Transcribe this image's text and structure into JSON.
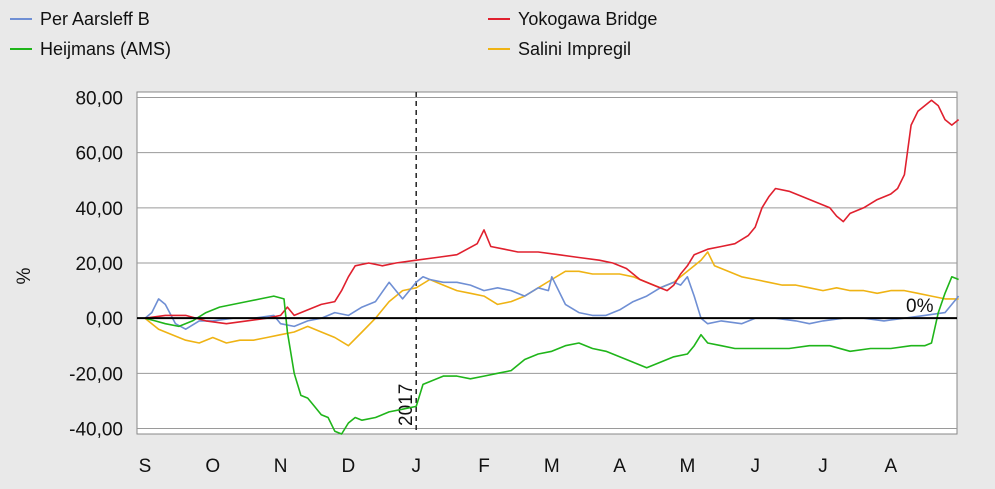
{
  "chart_data": {
    "type": "line",
    "ylabel": "%",
    "ylim": [
      -42,
      82
    ],
    "yticks": [
      80,
      60,
      40,
      20,
      0,
      -20,
      -40
    ],
    "ytick_labels": [
      "80,00",
      "60,00",
      "40,00",
      "20,00",
      "0,00",
      "-20,00",
      "-40,00"
    ],
    "x_months": [
      "S",
      "O",
      "N",
      "D",
      "J",
      "F",
      "M",
      "A",
      "M",
      "J",
      "J",
      "A"
    ],
    "year_marker": {
      "label": "2017",
      "x": 4.0
    },
    "zero_label": "0%",
    "grid": true,
    "legend_position": "top",
    "series": [
      {
        "name": "Per Aarsleff B",
        "color": "#6f8fd4",
        "points": [
          [
            0,
            0
          ],
          [
            0.1,
            2
          ],
          [
            0.2,
            7
          ],
          [
            0.3,
            5
          ],
          [
            0.45,
            -2
          ],
          [
            0.6,
            -4
          ],
          [
            0.8,
            -1
          ],
          [
            1.0,
            -1
          ],
          [
            1.3,
            0
          ],
          [
            1.6,
            0
          ],
          [
            1.9,
            1
          ],
          [
            2.0,
            -2
          ],
          [
            2.2,
            -3
          ],
          [
            2.4,
            -1
          ],
          [
            2.6,
            0
          ],
          [
            2.8,
            2
          ],
          [
            3.0,
            1
          ],
          [
            3.2,
            4
          ],
          [
            3.4,
            6
          ],
          [
            3.6,
            13
          ],
          [
            3.7,
            10
          ],
          [
            3.8,
            7
          ],
          [
            4.0,
            13
          ],
          [
            4.1,
            15
          ],
          [
            4.2,
            14
          ],
          [
            4.4,
            13
          ],
          [
            4.6,
            13
          ],
          [
            4.8,
            12
          ],
          [
            5.0,
            10
          ],
          [
            5.2,
            11
          ],
          [
            5.4,
            10
          ],
          [
            5.6,
            8
          ],
          [
            5.8,
            11
          ],
          [
            5.95,
            10
          ],
          [
            6.0,
            15
          ],
          [
            6.2,
            5
          ],
          [
            6.4,
            2
          ],
          [
            6.6,
            1
          ],
          [
            6.8,
            1
          ],
          [
            7.0,
            3
          ],
          [
            7.2,
            6
          ],
          [
            7.4,
            8
          ],
          [
            7.6,
            11
          ],
          [
            7.8,
            13
          ],
          [
            7.9,
            12
          ],
          [
            8.0,
            15
          ],
          [
            8.1,
            8
          ],
          [
            8.2,
            0
          ],
          [
            8.3,
            -2
          ],
          [
            8.5,
            -1
          ],
          [
            8.8,
            -2
          ],
          [
            9.0,
            0
          ],
          [
            9.3,
            0
          ],
          [
            9.6,
            -1
          ],
          [
            9.8,
            -2
          ],
          [
            10.0,
            -1
          ],
          [
            10.3,
            0
          ],
          [
            10.6,
            0
          ],
          [
            10.9,
            -1
          ],
          [
            11.2,
            0
          ],
          [
            11.5,
            1
          ],
          [
            11.8,
            2
          ],
          [
            12.0,
            8
          ]
        ]
      },
      {
        "name": "Heijmans (AMS)",
        "color": "#1fb51a",
        "points": [
          [
            0,
            0
          ],
          [
            0.15,
            -1
          ],
          [
            0.3,
            -2
          ],
          [
            0.5,
            -3
          ],
          [
            0.7,
            -1
          ],
          [
            0.9,
            2
          ],
          [
            1.1,
            4
          ],
          [
            1.3,
            5
          ],
          [
            1.5,
            6
          ],
          [
            1.7,
            7
          ],
          [
            1.9,
            8
          ],
          [
            2.05,
            7
          ],
          [
            2.1,
            -5
          ],
          [
            2.2,
            -20
          ],
          [
            2.3,
            -28
          ],
          [
            2.4,
            -29
          ],
          [
            2.5,
            -32
          ],
          [
            2.6,
            -35
          ],
          [
            2.7,
            -36
          ],
          [
            2.8,
            -41
          ],
          [
            2.9,
            -42
          ],
          [
            3.0,
            -38
          ],
          [
            3.1,
            -36
          ],
          [
            3.2,
            -37
          ],
          [
            3.4,
            -36
          ],
          [
            3.6,
            -34
          ],
          [
            3.8,
            -33
          ],
          [
            4.0,
            -32
          ],
          [
            4.1,
            -24
          ],
          [
            4.2,
            -23
          ],
          [
            4.4,
            -21
          ],
          [
            4.6,
            -21
          ],
          [
            4.8,
            -22
          ],
          [
            5.0,
            -21
          ],
          [
            5.2,
            -20
          ],
          [
            5.4,
            -19
          ],
          [
            5.6,
            -15
          ],
          [
            5.8,
            -13
          ],
          [
            6.0,
            -12
          ],
          [
            6.2,
            -10
          ],
          [
            6.4,
            -9
          ],
          [
            6.6,
            -11
          ],
          [
            6.8,
            -12
          ],
          [
            7.0,
            -14
          ],
          [
            7.2,
            -16
          ],
          [
            7.4,
            -18
          ],
          [
            7.6,
            -16
          ],
          [
            7.8,
            -14
          ],
          [
            8.0,
            -13
          ],
          [
            8.1,
            -10
          ],
          [
            8.2,
            -6
          ],
          [
            8.3,
            -9
          ],
          [
            8.5,
            -10
          ],
          [
            8.7,
            -11
          ],
          [
            8.9,
            -11
          ],
          [
            9.2,
            -11
          ],
          [
            9.5,
            -11
          ],
          [
            9.8,
            -10
          ],
          [
            10.1,
            -10
          ],
          [
            10.4,
            -12
          ],
          [
            10.7,
            -11
          ],
          [
            11.0,
            -11
          ],
          [
            11.3,
            -10
          ],
          [
            11.5,
            -10
          ],
          [
            11.6,
            -9
          ],
          [
            11.7,
            2
          ],
          [
            11.8,
            9
          ],
          [
            11.9,
            15
          ],
          [
            12.0,
            14
          ]
        ]
      },
      {
        "name": "Yokogawa Bridge",
        "color": "#e0202e",
        "points": [
          [
            0,
            0
          ],
          [
            0.3,
            1
          ],
          [
            0.6,
            1
          ],
          [
            0.9,
            -1
          ],
          [
            1.2,
            -2
          ],
          [
            1.5,
            -1
          ],
          [
            1.8,
            0
          ],
          [
            2.0,
            1
          ],
          [
            2.1,
            4
          ],
          [
            2.2,
            1
          ],
          [
            2.4,
            3
          ],
          [
            2.6,
            5
          ],
          [
            2.8,
            6
          ],
          [
            2.9,
            10
          ],
          [
            3.0,
            15
          ],
          [
            3.1,
            19
          ],
          [
            3.3,
            20
          ],
          [
            3.5,
            19
          ],
          [
            3.7,
            20
          ],
          [
            4.0,
            21
          ],
          [
            4.3,
            22
          ],
          [
            4.6,
            23
          ],
          [
            4.9,
            27
          ],
          [
            5.0,
            32
          ],
          [
            5.1,
            26
          ],
          [
            5.3,
            25
          ],
          [
            5.5,
            24
          ],
          [
            5.8,
            24
          ],
          [
            6.1,
            23
          ],
          [
            6.4,
            22
          ],
          [
            6.7,
            21
          ],
          [
            6.9,
            20
          ],
          [
            7.1,
            18
          ],
          [
            7.3,
            14
          ],
          [
            7.5,
            12
          ],
          [
            7.7,
            10
          ],
          [
            7.8,
            12
          ],
          [
            7.9,
            16
          ],
          [
            8.0,
            19
          ],
          [
            8.1,
            23
          ],
          [
            8.3,
            25
          ],
          [
            8.5,
            26
          ],
          [
            8.7,
            27
          ],
          [
            8.9,
            30
          ],
          [
            9.0,
            33
          ],
          [
            9.1,
            40
          ],
          [
            9.2,
            44
          ],
          [
            9.3,
            47
          ],
          [
            9.5,
            46
          ],
          [
            9.7,
            44
          ],
          [
            9.9,
            42
          ],
          [
            10.1,
            40
          ],
          [
            10.2,
            37
          ],
          [
            10.3,
            35
          ],
          [
            10.4,
            38
          ],
          [
            10.6,
            40
          ],
          [
            10.8,
            43
          ],
          [
            11.0,
            45
          ],
          [
            11.1,
            47
          ],
          [
            11.2,
            52
          ],
          [
            11.3,
            70
          ],
          [
            11.4,
            75
          ],
          [
            11.5,
            77
          ],
          [
            11.6,
            79
          ],
          [
            11.7,
            77
          ],
          [
            11.8,
            72
          ],
          [
            11.9,
            70
          ],
          [
            12.0,
            72
          ]
        ]
      },
      {
        "name": "Salini Impregil",
        "color": "#efb314",
        "points": [
          [
            0,
            0
          ],
          [
            0.2,
            -4
          ],
          [
            0.4,
            -6
          ],
          [
            0.6,
            -8
          ],
          [
            0.8,
            -9
          ],
          [
            1.0,
            -7
          ],
          [
            1.2,
            -9
          ],
          [
            1.4,
            -8
          ],
          [
            1.6,
            -8
          ],
          [
            1.8,
            -7
          ],
          [
            2.0,
            -6
          ],
          [
            2.2,
            -5
          ],
          [
            2.4,
            -3
          ],
          [
            2.6,
            -5
          ],
          [
            2.8,
            -7
          ],
          [
            3.0,
            -10
          ],
          [
            3.2,
            -5
          ],
          [
            3.4,
            0
          ],
          [
            3.6,
            6
          ],
          [
            3.8,
            10
          ],
          [
            4.0,
            11
          ],
          [
            4.2,
            14
          ],
          [
            4.4,
            12
          ],
          [
            4.6,
            10
          ],
          [
            4.8,
            9
          ],
          [
            5.0,
            8
          ],
          [
            5.2,
            5
          ],
          [
            5.4,
            6
          ],
          [
            5.6,
            8
          ],
          [
            5.8,
            11
          ],
          [
            6.0,
            14
          ],
          [
            6.2,
            17
          ],
          [
            6.4,
            17
          ],
          [
            6.6,
            16
          ],
          [
            6.8,
            16
          ],
          [
            7.0,
            16
          ],
          [
            7.2,
            15
          ],
          [
            7.4,
            13
          ],
          [
            7.6,
            11
          ],
          [
            7.8,
            13
          ],
          [
            8.0,
            17
          ],
          [
            8.2,
            21
          ],
          [
            8.3,
            24
          ],
          [
            8.4,
            19
          ],
          [
            8.6,
            17
          ],
          [
            8.8,
            15
          ],
          [
            9.0,
            14
          ],
          [
            9.2,
            13
          ],
          [
            9.4,
            12
          ],
          [
            9.6,
            12
          ],
          [
            9.8,
            11
          ],
          [
            10.0,
            10
          ],
          [
            10.2,
            11
          ],
          [
            10.4,
            10
          ],
          [
            10.6,
            10
          ],
          [
            10.8,
            9
          ],
          [
            11.0,
            10
          ],
          [
            11.2,
            10
          ],
          [
            11.4,
            9
          ],
          [
            11.6,
            8
          ],
          [
            11.8,
            7
          ],
          [
            12.0,
            7
          ]
        ]
      }
    ]
  }
}
